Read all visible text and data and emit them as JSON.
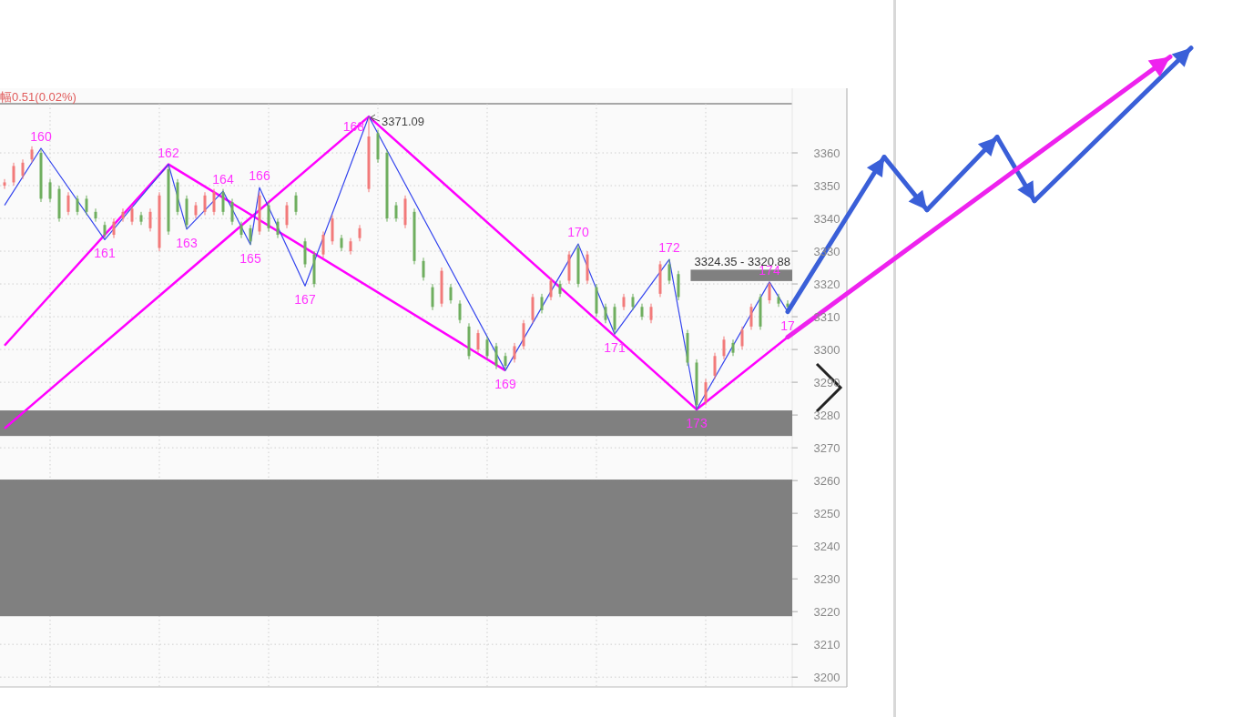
{
  "chart_data": {
    "type": "candlestick",
    "categories": [
      null,
      null,
      null,
      null,
      null,
      null,
      null,
      null,
      null,
      null,
      null,
      null,
      null,
      null,
      null,
      null,
      null,
      null,
      null,
      null,
      null,
      null,
      null,
      null,
      null,
      null,
      null,
      null,
      null,
      null,
      null,
      null,
      null,
      null,
      null,
      null,
      null,
      null,
      null,
      null,
      null,
      null,
      null,
      null,
      null,
      null,
      null,
      null,
      null,
      null,
      null,
      null,
      null,
      null,
      null,
      null,
      null,
      null,
      null,
      null,
      null,
      null,
      null,
      null,
      null,
      null,
      null,
      null,
      null,
      null,
      null,
      null,
      null,
      null,
      null,
      null,
      null,
      null,
      null,
      null,
      null,
      null,
      null,
      null,
      null,
      null,
      null
    ],
    "ohlc": [
      [
        3350,
        3352,
        3349,
        3351
      ],
      [
        3351,
        3357,
        3350,
        3356
      ],
      [
        3353,
        3358,
        3352,
        3357
      ],
      [
        3358,
        3362,
        3357,
        3361
      ],
      [
        3360,
        3361,
        3345,
        3346
      ],
      [
        3351,
        3352,
        3345,
        3346
      ],
      [
        3349,
        3350,
        3339,
        3340
      ],
      [
        3342,
        3348,
        3341,
        3347
      ],
      [
        3346,
        3347,
        3341,
        3342
      ],
      [
        3346,
        3347,
        3341,
        3342
      ],
      [
        3342,
        3343,
        3339,
        3340
      ],
      [
        3338,
        3339,
        3334,
        3335
      ],
      [
        3335,
        3340,
        3334,
        3339
      ],
      [
        3340,
        3343,
        3339,
        3342
      ],
      [
        3339,
        3344,
        3338,
        3343
      ],
      [
        3341,
        3342,
        3338,
        3339
      ],
      [
        3337,
        3343,
        3336,
        3342
      ],
      [
        3331,
        3348,
        3330,
        3347
      ],
      [
        3355,
        3356,
        3335,
        3336
      ],
      [
        3351,
        3352,
        3341,
        3342
      ],
      [
        3346,
        3347,
        3337,
        3338
      ],
      [
        3341,
        3345,
        3340,
        3344
      ],
      [
        3342,
        3348,
        3341,
        3347
      ],
      [
        3342,
        3349,
        3341,
        3348
      ],
      [
        3348,
        3349,
        3341,
        3342
      ],
      [
        3345,
        3346,
        3338,
        3339
      ],
      [
        3338,
        3339,
        3334,
        3335
      ],
      [
        3337,
        3338,
        3332,
        3333
      ],
      [
        3336,
        3348,
        3335,
        3347
      ],
      [
        3344,
        3345,
        3336,
        3337
      ],
      [
        3339,
        3340,
        3334,
        3335
      ],
      [
        3338,
        3345,
        3337,
        3344
      ],
      [
        3347,
        3348,
        3341,
        3342
      ],
      [
        3333,
        3334,
        3325,
        3326
      ],
      [
        3329,
        3330,
        3319,
        3320
      ],
      [
        3329,
        3336,
        3328,
        3335
      ],
      [
        3333,
        3341,
        3332,
        3340
      ],
      [
        3334,
        3335,
        3330,
        3331
      ],
      [
        3330,
        3334,
        3329,
        3333
      ],
      [
        3334,
        3338,
        3333,
        3337
      ],
      [
        3349,
        3371.09,
        3348,
        3365
      ],
      [
        3366,
        3367,
        3357,
        3358
      ],
      [
        3360,
        3361,
        3339,
        3340
      ],
      [
        3344,
        3345,
        3339,
        3340
      ],
      [
        3338,
        3347,
        3337,
        3346
      ],
      [
        3342,
        3343,
        3326,
        3327
      ],
      [
        3327,
        3328,
        3321,
        3322
      ],
      [
        3319,
        3320,
        3312,
        3313
      ],
      [
        3314,
        3325,
        3313,
        3324
      ],
      [
        3319,
        3320,
        3314,
        3315
      ],
      [
        3314,
        3315,
        3308,
        3309
      ],
      [
        3307,
        3308,
        3297,
        3298
      ],
      [
        3300,
        3306,
        3299,
        3305
      ],
      [
        3303,
        3304,
        3297,
        3298
      ],
      [
        3301,
        3302,
        3294,
        3295
      ],
      [
        3298,
        3299,
        3293.6,
        3295
      ],
      [
        3297,
        3302,
        3296,
        3301
      ],
      [
        3301,
        3309,
        3300,
        3308
      ],
      [
        3309,
        3317,
        3308,
        3316
      ],
      [
        3316,
        3317,
        3311,
        3312
      ],
      [
        3316,
        3322,
        3315,
        3321
      ],
      [
        3320,
        3321,
        3316,
        3317
      ],
      [
        3321,
        3330,
        3320,
        3329
      ],
      [
        3331,
        3332,
        3319,
        3320
      ],
      [
        3321,
        3330,
        3320,
        3329
      ],
      [
        3319,
        3320,
        3310,
        3311
      ],
      [
        3313,
        3314,
        3308,
        3309
      ],
      [
        3313,
        3314,
        3304.7,
        3306
      ],
      [
        3313,
        3317,
        3312,
        3316
      ],
      [
        3316,
        3317,
        3312,
        3313
      ],
      [
        3313,
        3314,
        3309,
        3310
      ],
      [
        3309,
        3314,
        3308,
        3313
      ],
      [
        3317,
        3327,
        3316,
        3326
      ],
      [
        3326,
        3327.5,
        3320,
        3321
      ],
      [
        3323,
        3324,
        3315,
        3316
      ],
      [
        3305,
        3306,
        3295,
        3296
      ],
      [
        3296,
        3297,
        3281.7,
        3283
      ],
      [
        3284,
        3291,
        3283,
        3290
      ],
      [
        3292,
        3299,
        3291,
        3298
      ],
      [
        3298,
        3304,
        3297,
        3303
      ],
      [
        3302,
        3303,
        3298,
        3299
      ],
      [
        3301,
        3307,
        3300,
        3306
      ],
      [
        3307,
        3314,
        3306,
        3313
      ],
      [
        3316,
        3317,
        3306,
        3307
      ],
      [
        3315,
        3320.6,
        3314,
        3320
      ],
      [
        3316,
        3317,
        3313,
        3314
      ],
      [
        3314,
        3315,
        3312,
        3313
      ]
    ],
    "series": [
      {
        "type": "line",
        "color": "#3344ee",
        "values": [
          3344,
          null,
          null,
          null,
          3361.4,
          null,
          null,
          null,
          null,
          null,
          null,
          3333.5,
          null,
          null,
          null,
          null,
          null,
          null,
          3356.5,
          null,
          3336.7,
          null,
          null,
          null,
          3348.3,
          null,
          null,
          3332,
          3349.4,
          null,
          null,
          null,
          null,
          3319.4,
          null,
          null,
          null,
          null,
          null,
          null,
          3371.09,
          null,
          null,
          null,
          null,
          null,
          null,
          null,
          null,
          null,
          null,
          null,
          null,
          null,
          null,
          3293.6,
          null,
          null,
          null,
          null,
          null,
          null,
          null,
          3332.2,
          null,
          null,
          null,
          3304.7,
          null,
          null,
          null,
          null,
          null,
          3327.5,
          null,
          null,
          3281.7,
          null,
          null,
          null,
          null,
          null,
          null,
          null,
          3320.6,
          null,
          3311.5
        ]
      },
      {
        "type": "line",
        "color": "#ff00ff",
        "values": [
          3301.2,
          null,
          null,
          null,
          null,
          null,
          null,
          null,
          null,
          null,
          null,
          null,
          null,
          null,
          null,
          null,
          null,
          null,
          3356.5,
          null,
          null,
          null,
          null,
          null,
          null,
          null,
          null,
          null,
          null,
          null,
          null,
          null,
          null,
          null,
          null,
          null,
          null,
          null,
          null,
          null,
          null,
          null,
          null,
          null,
          null,
          null,
          null,
          null,
          null,
          null,
          null,
          null,
          null,
          null,
          null,
          3293.6,
          null,
          null,
          null,
          null,
          null,
          null,
          null,
          null,
          null,
          null,
          null,
          null,
          null,
          null,
          null,
          null,
          null,
          null,
          null,
          null,
          null,
          null,
          null,
          null,
          null,
          null,
          null,
          null,
          null,
          null,
          null
        ]
      },
      {
        "type": "line",
        "color": "#ff00ff",
        "values": [
          3275.9,
          null,
          null,
          null,
          null,
          null,
          null,
          null,
          null,
          null,
          null,
          null,
          null,
          null,
          null,
          null,
          null,
          null,
          null,
          null,
          null,
          null,
          null,
          null,
          null,
          null,
          null,
          null,
          null,
          null,
          null,
          null,
          null,
          null,
          null,
          null,
          null,
          null,
          null,
          null,
          3371.09,
          null,
          null,
          null,
          null,
          null,
          null,
          null,
          null,
          null,
          null,
          null,
          null,
          null,
          null,
          null,
          null,
          null,
          null,
          null,
          null,
          null,
          null,
          null,
          null,
          null,
          null,
          null,
          null,
          null,
          null,
          null,
          null,
          null,
          null,
          null,
          3281.7,
          null,
          null,
          null,
          null,
          null,
          null,
          null,
          null,
          null,
          3303.8
        ]
      }
    ],
    "ylim": [
      3197,
      3375
    ],
    "yticks": [
      3200,
      3210,
      3220,
      3230,
      3240,
      3250,
      3260,
      3270,
      3280,
      3290,
      3300,
      3310,
      3320,
      3330,
      3340,
      3350,
      3360
    ],
    "tick_labels": "y",
    "grid": true,
    "bands": [
      {
        "axis": "y",
        "from": 3273.6,
        "to": 3281.4,
        "color": "#808080"
      },
      {
        "axis": "y",
        "from": 3218.6,
        "to": 3260.3,
        "color": "#808080"
      },
      {
        "axis": "y",
        "from": 3320.88,
        "to": 3324.35,
        "label": "3324.35 - 3320.88",
        "color": "#808080"
      }
    ],
    "annotations": [
      "幅0.51(0.02%)",
      {
        "text": "160",
        "y": 3361.4
      },
      {
        "text": "161",
        "y": 3333.5
      },
      {
        "text": "162",
        "y": 3356.5
      },
      {
        "text": "163",
        "y": 3336.7
      },
      {
        "text": "164",
        "y": 3348.3
      },
      {
        "text": "165",
        "y": 3332
      },
      {
        "text": "166",
        "y": 3349.4
      },
      {
        "text": "167",
        "y": 3319.4
      },
      "168",
      "3371.09",
      {
        "text": "169",
        "y": 3293.6
      },
      {
        "text": "170",
        "y": 3332.2
      },
      {
        "text": "171",
        "y": 3304.7
      },
      {
        "text": "172",
        "y": 3327.5
      },
      {
        "text": "173",
        "y": 3281.7
      },
      {
        "text": "174",
        "y": 3320.6
      },
      {
        "text": "17",
        "y": 3311.5
      }
    ]
  }
}
